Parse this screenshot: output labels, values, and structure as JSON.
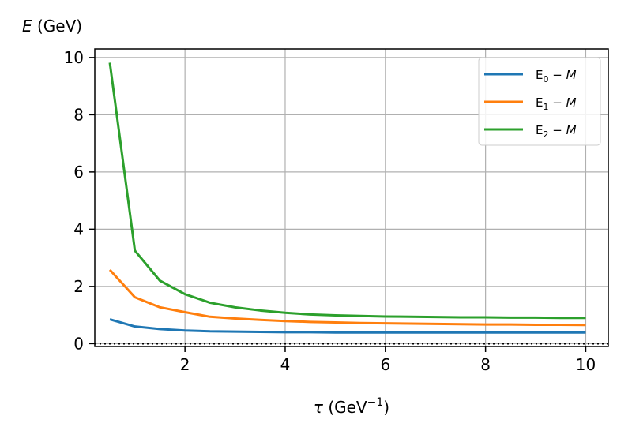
{
  "chart_data": {
    "type": "line",
    "xlabel": {
      "symbol": "τ",
      "text": " (GeV",
      "sup": "−1",
      "close": ")"
    },
    "ylabel": {
      "symbol": "E",
      "text": " (GeV)"
    },
    "xlim": [
      0.2,
      10.45
    ],
    "ylim": [
      -0.1,
      10.3
    ],
    "xticks": [
      2,
      4,
      6,
      8,
      10
    ],
    "xtick_labels": [
      "2",
      "4",
      "6",
      "8",
      "10"
    ],
    "yticks": [
      0,
      2,
      4,
      6,
      8,
      10
    ],
    "ytick_labels": [
      "0",
      "2",
      "4",
      "6",
      "8",
      "10"
    ],
    "grid": true,
    "reference_line": {
      "y": 0,
      "style": "dotted",
      "color": "#000000"
    },
    "legend_position": "top-right",
    "x": [
      0.5,
      1.0,
      1.5,
      2.0,
      2.5,
      3.0,
      3.5,
      4.0,
      4.5,
      5.0,
      5.5,
      6.0,
      6.5,
      7.0,
      7.5,
      8.0,
      8.5,
      9.0,
      9.5,
      10.0
    ],
    "series": [
      {
        "label_main": "E",
        "label_sub": "0",
        "label_tail": " − ",
        "label_var": "M",
        "color": "#1f77b4",
        "values": [
          0.85,
          0.6,
          0.51,
          0.46,
          0.43,
          0.42,
          0.41,
          0.4,
          0.4,
          0.39,
          0.39,
          0.39,
          0.39,
          0.39,
          0.39,
          0.39,
          0.39,
          0.39,
          0.39,
          0.39
        ]
      },
      {
        "label_main": "E",
        "label_sub": "1",
        "label_tail": " − ",
        "label_var": "M",
        "color": "#ff7f0e",
        "values": [
          2.58,
          1.62,
          1.27,
          1.1,
          0.94,
          0.88,
          0.83,
          0.79,
          0.76,
          0.74,
          0.72,
          0.71,
          0.7,
          0.69,
          0.68,
          0.67,
          0.67,
          0.66,
          0.66,
          0.65
        ]
      },
      {
        "label_main": "E",
        "label_sub": "2",
        "label_tail": " − ",
        "label_var": "M",
        "color": "#2ca02c",
        "values": [
          9.82,
          3.25,
          2.2,
          1.73,
          1.43,
          1.27,
          1.16,
          1.08,
          1.02,
          0.99,
          0.97,
          0.95,
          0.94,
          0.93,
          0.92,
          0.92,
          0.91,
          0.91,
          0.9,
          0.9
        ]
      }
    ]
  }
}
